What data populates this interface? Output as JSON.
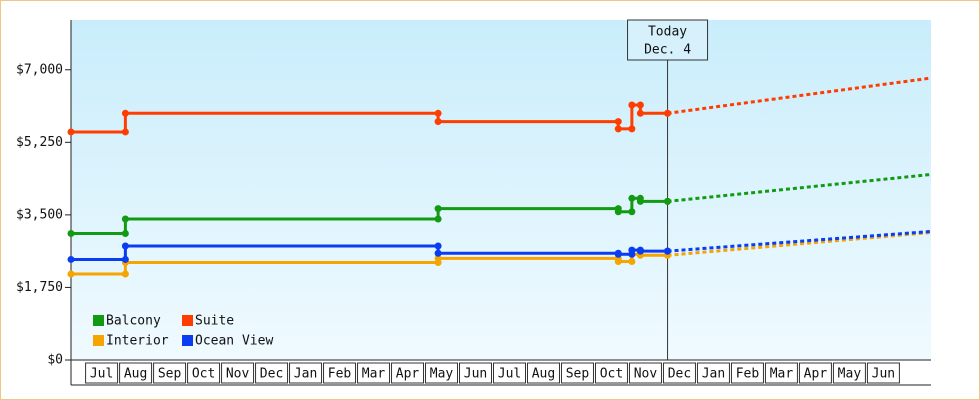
{
  "chart_data": {
    "type": "step-line",
    "x": [
      -0.4,
      1.2,
      10.4,
      15.7,
      16.1,
      16.35,
      17.15
    ],
    "xlim": [
      -0.4,
      24.9
    ],
    "xticks": [
      {
        "value": 0.5,
        "label": "Jul"
      },
      {
        "value": 1.5,
        "label": "Aug"
      },
      {
        "value": 2.5,
        "label": "Sep"
      },
      {
        "value": 3.5,
        "label": "Oct"
      },
      {
        "value": 4.5,
        "label": "Nov"
      },
      {
        "value": 5.5,
        "label": "Dec"
      },
      {
        "value": 6.5,
        "label": "Jan"
      },
      {
        "value": 7.5,
        "label": "Feb"
      },
      {
        "value": 8.5,
        "label": "Mar"
      },
      {
        "value": 9.5,
        "label": "Apr"
      },
      {
        "value": 10.5,
        "label": "May"
      },
      {
        "value": 11.5,
        "label": "Jun"
      },
      {
        "value": 12.5,
        "label": "Jul"
      },
      {
        "value": 13.5,
        "label": "Aug"
      },
      {
        "value": 14.5,
        "label": "Sep"
      },
      {
        "value": 15.5,
        "label": "Oct"
      },
      {
        "value": 16.5,
        "label": "Nov"
      },
      {
        "value": 17.5,
        "label": "Dec"
      },
      {
        "value": 18.5,
        "label": "Jan"
      },
      {
        "value": 19.5,
        "label": "Feb"
      },
      {
        "value": 20.5,
        "label": "Mar"
      },
      {
        "value": 21.5,
        "label": "Apr"
      },
      {
        "value": 22.5,
        "label": "May"
      },
      {
        "value": 23.5,
        "label": "Jun"
      }
    ],
    "ylim": [
      0,
      8200
    ],
    "yticks": [
      {
        "value": 0,
        "label": "$0"
      },
      {
        "value": 1750,
        "label": "$1,750"
      },
      {
        "value": 3500,
        "label": "$3,500"
      },
      {
        "value": 5250,
        "label": "$5,250"
      },
      {
        "value": 7000,
        "label": "$7,000"
      }
    ],
    "grid": false,
    "legend": "lower left",
    "today_x": 17.15,
    "today_label": "Today",
    "today_date": "Dec. 4",
    "projection_x": [
      17.15,
      24.9
    ],
    "series": [
      {
        "name": "Balcony",
        "color": "#139a13",
        "values": [
          3050,
          3400,
          3650,
          3575,
          3900,
          3825,
          3825
        ],
        "projection": [
          3825,
          4475
        ]
      },
      {
        "name": "Suite",
        "color": "#ff3d00",
        "values": [
          5500,
          5950,
          5750,
          5575,
          6150,
          5950,
          5950
        ],
        "projection": [
          5950,
          6800
        ]
      },
      {
        "name": "Interior",
        "color": "#f5a400",
        "values": [
          2075,
          2350,
          2450,
          2375,
          2550,
          2525,
          2525
        ],
        "projection": [
          2525,
          3075
        ]
      },
      {
        "name": "Ocean View",
        "color": "#0a3cf2",
        "values": [
          2425,
          2750,
          2575,
          2550,
          2650,
          2625,
          2625
        ],
        "projection": [
          2625,
          3100
        ]
      }
    ]
  }
}
